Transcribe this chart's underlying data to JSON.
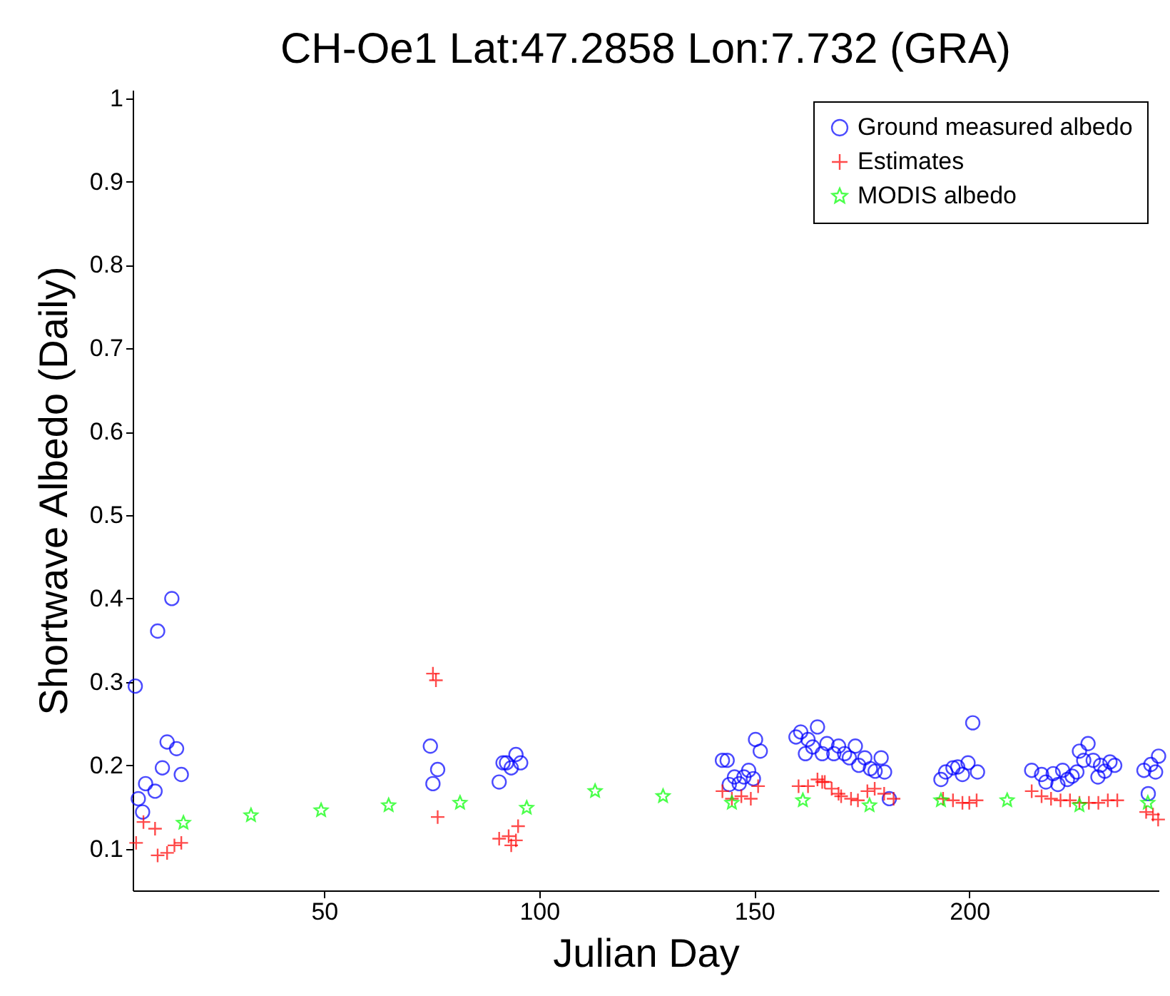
{
  "chart_data": {
    "type": "scatter",
    "title": "CH-Oe1 Lat:47.2858 Lon:7.732 (GRA)",
    "xlabel": "Julian Day",
    "ylabel": "Shortwave Albedo (Daily)",
    "xlim": [
      5.5,
      244
    ],
    "xticks": [
      50,
      100,
      150,
      200
    ],
    "ylim": [
      0.05,
      1.01
    ],
    "yticks": [
      0.1,
      0.2,
      0.3,
      0.4,
      0.5,
      0.6,
      0.7,
      0.8,
      0.9,
      1
    ],
    "grid": false,
    "legend": "top right",
    "series": [
      {
        "name": "Ground measured albedo",
        "color": "#0000ff",
        "marker": "circle",
        "x": [
          6.1,
          6.8,
          7.8,
          8.5,
          10.7,
          11.3,
          12.4,
          13.5,
          14.6,
          15.7,
          16.8,
          74.7,
          75.3,
          76.4,
          90.7,
          91.6,
          92.4,
          93.5,
          94.6,
          95.7,
          142.6,
          143.7,
          144.2,
          145.4,
          146.5,
          147.6,
          148.7,
          149.8,
          150.3,
          151.4,
          159.7,
          160.8,
          161.9,
          162.5,
          163.6,
          164.7,
          165.8,
          166.9,
          168.5,
          169.6,
          171,
          172.1,
          173.5,
          174.3,
          175.7,
          177,
          178.1,
          179.5,
          180.3,
          181.4,
          193.4,
          194.5,
          196.2,
          197.3,
          198.4,
          199.7,
          200.8,
          201.9,
          214.5,
          216.8,
          217.8,
          219.5,
          220.6,
          221.7,
          222.8,
          223.9,
          225,
          225.6,
          226.6,
          227.6,
          228.8,
          229.9,
          230.5,
          231.5,
          232.7,
          233.8,
          240.6,
          241.6,
          242.2,
          243.3,
          244
        ],
        "values": [
          0.295,
          0.16,
          0.144,
          0.178,
          0.169,
          0.361,
          0.197,
          0.228,
          0.4,
          0.22,
          0.189,
          0.223,
          0.178,
          0.195,
          0.18,
          0.203,
          0.203,
          0.197,
          0.213,
          0.203,
          0.206,
          0.206,
          0.177,
          0.186,
          0.178,
          0.186,
          0.194,
          0.184,
          0.231,
          0.217,
          0.234,
          0.24,
          0.214,
          0.231,
          0.222,
          0.246,
          0.214,
          0.226,
          0.214,
          0.223,
          0.214,
          0.209,
          0.223,
          0.2,
          0.209,
          0.196,
          0.193,
          0.209,
          0.192,
          0.16,
          0.183,
          0.192,
          0.197,
          0.198,
          0.189,
          0.203,
          0.251,
          0.192,
          0.194,
          0.189,
          0.18,
          0.19,
          0.177,
          0.194,
          0.183,
          0.187,
          0.192,
          0.217,
          0.206,
          0.226,
          0.206,
          0.186,
          0.2,
          0.193,
          0.204,
          0.2,
          0.194,
          0.166,
          0.201,
          0.192,
          0.211
        ]
      },
      {
        "name": "Estimates",
        "color": "#ff0000",
        "marker": "cross",
        "x": [
          6.3,
          8,
          10.7,
          11.3,
          13.5,
          15.2,
          16.8,
          75.3,
          76,
          76.4,
          90.7,
          92.9,
          93.5,
          94.6,
          95.1,
          142.6,
          144.8,
          147,
          149.2,
          150.9,
          160.3,
          162.5,
          164.7,
          165.8,
          166.4,
          168,
          169.6,
          170.2,
          172.5,
          174.1,
          176.3,
          178,
          180.2,
          182.4,
          193.9,
          196.2,
          198.4,
          200,
          201.7,
          214.5,
          216.8,
          219,
          221.2,
          223.4,
          225.6,
          227.8,
          230,
          232.2,
          234.4,
          241.1,
          242.7,
          243.9
        ],
        "values": [
          0.107,
          0.132,
          0.124,
          0.092,
          0.095,
          0.104,
          0.107,
          0.31,
          0.302,
          0.138,
          0.112,
          0.115,
          0.104,
          0.11,
          0.127,
          0.169,
          0.16,
          0.163,
          0.16,
          0.175,
          0.175,
          0.175,
          0.183,
          0.18,
          0.18,
          0.172,
          0.166,
          0.163,
          0.16,
          0.158,
          0.169,
          0.172,
          0.166,
          0.16,
          0.16,
          0.158,
          0.155,
          0.155,
          0.158,
          0.169,
          0.163,
          0.16,
          0.158,
          0.158,
          0.155,
          0.155,
          0.155,
          0.158,
          0.158,
          0.144,
          0.141,
          0.135
        ]
      },
      {
        "name": "MODIS albedo",
        "color": "#00ff00",
        "marker": "star",
        "x": [
          17.3,
          33,
          49.3,
          65,
          81.6,
          97.1,
          113,
          128.8,
          144.8,
          161.3,
          176.8,
          193.4,
          208.8,
          225.6,
          241.5
        ],
        "values": [
          0.131,
          0.14,
          0.146,
          0.152,
          0.155,
          0.149,
          0.169,
          0.163,
          0.155,
          0.158,
          0.152,
          0.158,
          0.158,
          0.152,
          0.155
        ]
      }
    ]
  }
}
